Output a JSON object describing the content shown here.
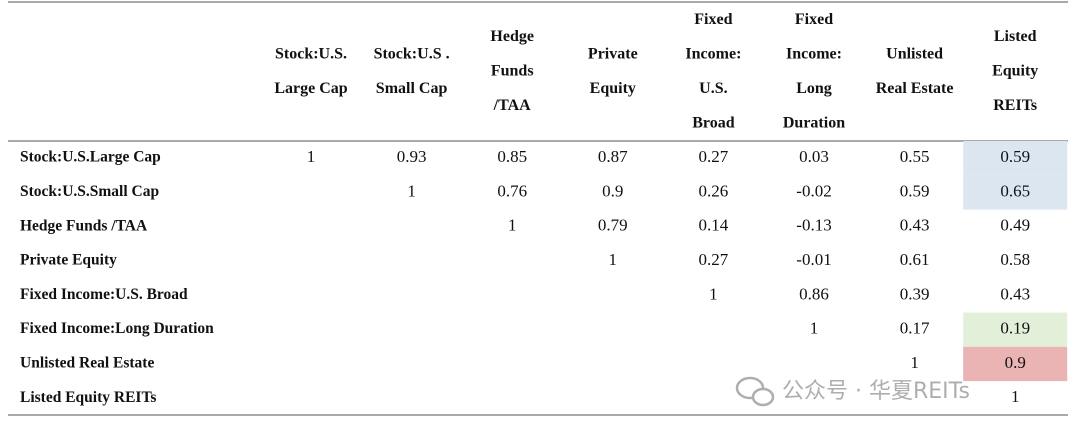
{
  "table": {
    "columns": [
      [
        "Stock:U.S.",
        "Large Cap"
      ],
      [
        "Stock:U.S .",
        "Small Cap"
      ],
      [
        "Hedge",
        "Funds",
        "/TAA"
      ],
      [
        "Private",
        "Equity"
      ],
      [
        "Fixed",
        "Income:",
        "U.S.",
        "Broad"
      ],
      [
        "Fixed",
        "Income:",
        "Long",
        "Duration"
      ],
      [
        "Unlisted",
        "Real Estate"
      ],
      [
        "Listed",
        "Equity",
        "REITs"
      ]
    ],
    "rows": [
      {
        "label": "Stock:U.S.Large Cap",
        "values": [
          1,
          0.93,
          0.85,
          0.87,
          0.27,
          0.03,
          0.55,
          0.59
        ],
        "last_color": "#dce6f1"
      },
      {
        "label": "Stock:U.S.Small Cap",
        "values": [
          1,
          0.76,
          0.9,
          0.26,
          -0.02,
          0.59,
          0.65
        ],
        "last_color": "#dce6f1"
      },
      {
        "label": "Hedge Funds /TAA",
        "values": [
          1,
          0.79,
          0.14,
          -0.13,
          0.43,
          0.49
        ]
      },
      {
        "label": "Private Equity",
        "values": [
          1,
          0.27,
          -0.01,
          0.61,
          0.58
        ]
      },
      {
        "label": "Fixed Income:U.S. Broad",
        "values": [
          1,
          0.86,
          0.39,
          0.43
        ]
      },
      {
        "label": "Fixed Income:Long Duration",
        "values": [
          1,
          0.17,
          0.19
        ],
        "last_color": "#e2efd9"
      },
      {
        "label": "Unlisted Real Estate",
        "values": [
          1,
          0.9
        ],
        "last_color": "#eab4b4"
      },
      {
        "label": "Listed Equity REITs",
        "values": [
          1
        ]
      }
    ]
  },
  "watermark": "公众号 · 华夏REITs"
}
